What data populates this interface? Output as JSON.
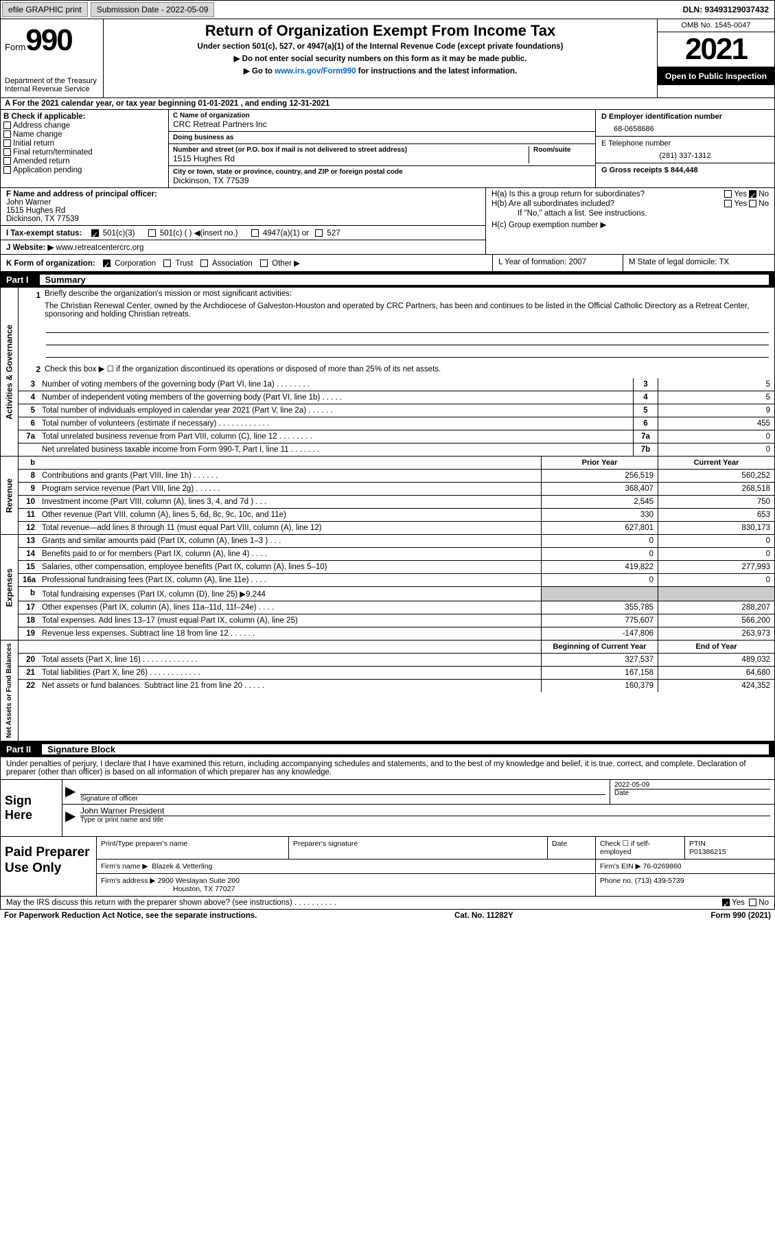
{
  "topbar": {
    "efile": "efile GRAPHIC print",
    "submission_label": "Submission Date - 2022-05-09",
    "dln_label": "DLN: 93493129037432"
  },
  "header": {
    "form_word": "Form",
    "form_num": "990",
    "dept": "Department of the Treasury Internal Revenue Service",
    "title": "Return of Organization Exempt From Income Tax",
    "sub1": "Under section 501(c), 527, or 4947(a)(1) of the Internal Revenue Code (except private foundations)",
    "sub2": "▶ Do not enter social security numbers on this form as it may be made public.",
    "sub3_pre": "▶ Go to ",
    "sub3_link": "www.irs.gov/Form990",
    "sub3_post": " for instructions and the latest information.",
    "omb": "OMB No. 1545-0047",
    "year": "2021",
    "inspect": "Open to Public Inspection"
  },
  "cal": "A For the 2021 calendar year, or tax year beginning 01-01-2021     , and ending 12-31-2021",
  "boxB": {
    "label": "B Check if applicable:",
    "items": [
      "Address change",
      "Name change",
      "Initial return",
      "Final return/terminated",
      "Amended return",
      "Application pending"
    ]
  },
  "boxC": {
    "name_label": "C Name of organization",
    "name": "CRC Retreat Partners Inc",
    "dba_label": "Doing business as",
    "dba": "",
    "addr_label": "Number and street (or P.O. box if mail is not delivered to street address)",
    "room_label": "Room/suite",
    "addr": "1515 Hughes Rd",
    "city_label": "City or town, state or province, country, and ZIP or foreign postal code",
    "city": "Dickinson, TX  77539"
  },
  "boxD": {
    "label": "D Employer identification number",
    "val": "68-0658686"
  },
  "boxE": {
    "label": "E Telephone number",
    "val": "(281) 337-1312"
  },
  "boxG": {
    "label": "G Gross receipts $ 844,448"
  },
  "boxF": {
    "label": "F  Name and address of principal officer:",
    "name": "John Warner",
    "addr1": "1515 Hughes Rd",
    "addr2": "Dickinson, TX  77539"
  },
  "boxH": {
    "ha": "H(a)  Is this a group return for subordinates?",
    "hb": "H(b)  Are all subordinates included?",
    "hb_note": "If \"No,\" attach a list. See instructions.",
    "hc": "H(c)  Group exemption number ▶",
    "yes": "Yes",
    "no": "No"
  },
  "boxI": {
    "label": "I   Tax-exempt status:",
    "opts": [
      "501(c)(3)",
      "501(c) (  ) ◀(insert no.)",
      "4947(a)(1) or",
      "527"
    ]
  },
  "boxJ": {
    "label": "J   Website: ▶",
    "val": "  www.retreatcentercrc.org"
  },
  "boxK": {
    "label": "K Form of organization:",
    "opts": [
      "Corporation",
      "Trust",
      "Association",
      "Other ▶"
    ]
  },
  "boxL": {
    "label": "L Year of formation: 2007"
  },
  "boxM": {
    "label": "M State of legal domicile: TX"
  },
  "part1": {
    "num": "Part I",
    "title": "Summary"
  },
  "summary": {
    "gov_label": "Activities & Governance",
    "line1_label": "Briefly describe the organization's mission or most significant activities:",
    "line1_text": "The Christian Renewal Center, owned by the Archdiocese of Galveston-Houston and operated by CRC Partners, has been and continues to be listed in the Official Catholic Directory as a Retreat Center, sponsoring and holding Christian retreats.",
    "line2": "Check this box ▶ ☐  if the organization discontinued its operations or disposed of more than 25% of its net assets.",
    "rows_gov": [
      {
        "n": "3",
        "label": "Number of voting members of the governing body (Part VI, line 1a)  .    .    .    .    .    .    .    .",
        "box": "3",
        "val": "5"
      },
      {
        "n": "4",
        "label": "Number of independent voting members of the governing body (Part VI, line 1b)  .    .    .    .    .",
        "box": "4",
        "val": "5"
      },
      {
        "n": "5",
        "label": "Total number of individuals employed in calendar year 2021 (Part V, line 2a)  .    .    .    .    .    .",
        "box": "5",
        "val": "9"
      },
      {
        "n": "6",
        "label": "Total number of volunteers (estimate if necessary)    .    .    .    .    .    .    .    .    .    .    .    .",
        "box": "6",
        "val": "455"
      },
      {
        "n": "7a",
        "label": "Total unrelated business revenue from Part VIII, column (C), line 12   .    .    .    .    .    .    .    .",
        "box": "7a",
        "val": "0"
      },
      {
        "n": "",
        "label": "Net unrelated business taxable income from Form 990-T, Part I, line 11  .    .    .    .    .    .    .",
        "box": "7b",
        "val": "0"
      }
    ],
    "hdr_prior": "Prior Year",
    "hdr_current": "Current Year",
    "rev_label": "Revenue",
    "rows_rev": [
      {
        "n": "8",
        "label": "Contributions and grants (Part VIII, line 1h)   .    .    .    .    .    .",
        "p": "256,519",
        "c": "560,252"
      },
      {
        "n": "9",
        "label": "Program service revenue (Part VIII, line 2g)   .    .    .    .    .    .",
        "p": "368,407",
        "c": "268,518"
      },
      {
        "n": "10",
        "label": "Investment income (Part VIII, column (A), lines 3, 4, and 7d )   .    .    .",
        "p": "2,545",
        "c": "750"
      },
      {
        "n": "11",
        "label": "Other revenue (Part VIII, column (A), lines 5, 6d, 8c, 9c, 10c, and 11e)",
        "p": "330",
        "c": "653"
      },
      {
        "n": "12",
        "label": "Total revenue—add lines 8 through 11 (must equal Part VIII, column (A), line 12)",
        "p": "627,801",
        "c": "830,173"
      }
    ],
    "exp_label": "Expenses",
    "rows_exp": [
      {
        "n": "13",
        "label": "Grants and similar amounts paid (Part IX, column (A), lines 1–3 )   .    .    .",
        "p": "0",
        "c": "0"
      },
      {
        "n": "14",
        "label": "Benefits paid to or for members (Part IX, column (A), line 4)   .    .    .    .",
        "p": "0",
        "c": "0"
      },
      {
        "n": "15",
        "label": "Salaries, other compensation, employee benefits (Part IX, column (A), lines 5–10)",
        "p": "419,822",
        "c": "277,993"
      },
      {
        "n": "16a",
        "label": "Professional fundraising fees (Part IX, column (A), line 11e)   .    .    .    .",
        "p": "0",
        "c": "0"
      },
      {
        "n": "b",
        "label": "Total fundraising expenses (Part IX, column (D), line 25) ▶9,244",
        "p": "",
        "c": "",
        "gray": true
      },
      {
        "n": "17",
        "label": "Other expenses (Part IX, column (A), lines 11a–11d, 11f–24e)    .    .    .    .",
        "p": "355,785",
        "c": "288,207"
      },
      {
        "n": "18",
        "label": "Total expenses. Add lines 13–17 (must equal Part IX, column (A), line 25)",
        "p": "775,607",
        "c": "566,200"
      },
      {
        "n": "19",
        "label": "Revenue less expenses. Subtract line 18 from line 12  .    .    .    .    .    .",
        "p": "-147,806",
        "c": "263,973"
      }
    ],
    "na_label": "Net Assets or Fund Balances",
    "hdr_begin": "Beginning of Current Year",
    "hdr_end": "End of Year",
    "rows_na": [
      {
        "n": "20",
        "label": "Total assets (Part X, line 16)  .    .    .    .    .    .    .    .    .    .    .    .    .",
        "p": "327,537",
        "c": "489,032"
      },
      {
        "n": "21",
        "label": "Total liabilities (Part X, line 26)  .    .    .    .    .    .    .    .    .    .    .    .",
        "p": "167,158",
        "c": "64,680"
      },
      {
        "n": "22",
        "label": "Net assets or fund balances. Subtract line 21 from line 20   .    .    .    .    .",
        "p": "160,379",
        "c": "424,352"
      }
    ]
  },
  "part2": {
    "num": "Part II",
    "title": "Signature Block"
  },
  "sig_text": "Under penalties of perjury, I declare that I have examined this return, including accompanying schedules and statements, and to the best of my knowledge and belief, it is true, correct, and complete. Declaration of preparer (other than officer) is based on all information of which preparer has any knowledge.",
  "sign": {
    "here": "Sign Here",
    "sig_label": "Signature of officer",
    "date": "2022-05-09",
    "date_label": "Date",
    "name": "John Warner  President",
    "name_label": "Type or print name and title"
  },
  "prep": {
    "left": "Paid Preparer Use Only",
    "r1c1": "Print/Type preparer's name",
    "r1c2": "Preparer's signature",
    "r1c3": "Date",
    "r1c4": "Check ☐ if self-employed",
    "r1c5_label": "PTIN",
    "r1c5": "P01386215",
    "r2_label": "Firm's name    ▶",
    "r2_val": "Blazek & Vetterling",
    "r2b_label": "Firm's EIN ▶",
    "r2b_val": "76-0269860",
    "r3_label": "Firm's address ▶",
    "r3_val1": "2900 Weslayan Suite 200",
    "r3_val2": "Houston, TX  77027",
    "r3b_label": "Phone no. (713) 439-5739"
  },
  "discuss": "May the IRS discuss this return with the preparer shown above? (see instructions)   .    .    .    .    .    .    .    .    .    .",
  "footer": {
    "left": "For Paperwork Reduction Act Notice, see the separate instructions.",
    "mid": "Cat. No. 11282Y",
    "right": "Form 990 (2021)"
  }
}
